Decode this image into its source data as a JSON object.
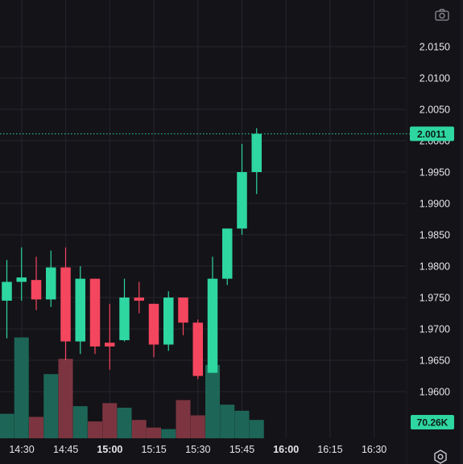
{
  "chart_data": {
    "type": "candlestick",
    "x_ticks": [
      {
        "t": "14:30",
        "bold": false
      },
      {
        "t": "14:45",
        "bold": false
      },
      {
        "t": "15:00",
        "bold": true
      },
      {
        "t": "15:15",
        "bold": false
      },
      {
        "t": "15:30",
        "bold": false
      },
      {
        "t": "15:45",
        "bold": false
      },
      {
        "t": "16:00",
        "bold": true
      },
      {
        "t": "16:15",
        "bold": false
      },
      {
        "t": "16:30",
        "bold": false
      }
    ],
    "y_ticks": [
      "2.0150",
      "2.0100",
      "2.0050",
      "2.0000",
      "1.9950",
      "1.9900",
      "1.9850",
      "1.9800",
      "1.9750",
      "1.9700",
      "1.9650",
      "1.9600"
    ],
    "y_range": [
      1.9565,
      2.0195
    ],
    "last_price_label": "2.0011",
    "last_price": 2.0011,
    "volume_label": "70.26K",
    "colors": {
      "up": "#2ed6a0",
      "down": "#f4465e",
      "up_volume": "#1d6657",
      "down_volume": "#7c3540",
      "grid": "#26252c",
      "background": "#141318"
    },
    "candles": [
      {
        "time": "14:24",
        "open": 1.9745,
        "high": 1.981,
        "low": 1.9685,
        "close": 1.9775,
        "volume": 0.16
      },
      {
        "time": "14:27",
        "open": 1.9775,
        "high": 1.983,
        "low": 1.9745,
        "close": 1.9782,
        "volume": 0.66
      },
      {
        "time": "14:30",
        "open": 1.9778,
        "high": 1.9815,
        "low": 1.973,
        "close": 1.9747,
        "volume": 0.14
      },
      {
        "time": "14:33",
        "open": 1.9747,
        "high": 1.9825,
        "low": 1.9735,
        "close": 1.9798,
        "volume": 0.42
      },
      {
        "time": "14:36",
        "open": 1.9798,
        "high": 1.983,
        "low": 1.965,
        "close": 1.968,
        "volume": 0.52
      },
      {
        "time": "14:39",
        "open": 1.968,
        "high": 1.98,
        "low": 1.966,
        "close": 1.978,
        "volume": 0.21
      },
      {
        "time": "14:42",
        "open": 1.978,
        "high": 1.978,
        "low": 1.966,
        "close": 1.9672,
        "volume": 0.11
      },
      {
        "time": "14:45",
        "open": 1.9678,
        "high": 1.974,
        "low": 1.9635,
        "close": 1.9672,
        "volume": 0.23
      },
      {
        "time": "14:48",
        "open": 1.9682,
        "high": 1.978,
        "low": 1.968,
        "close": 1.975,
        "volume": 0.2
      },
      {
        "time": "14:51",
        "open": 1.975,
        "high": 1.9775,
        "low": 1.9725,
        "close": 1.9745,
        "volume": 0.12
      },
      {
        "time": "14:54",
        "open": 1.974,
        "high": 1.974,
        "low": 1.9655,
        "close": 1.9675,
        "volume": 0.07
      },
      {
        "time": "14:57",
        "open": 1.9675,
        "high": 1.976,
        "low": 1.9665,
        "close": 1.975,
        "volume": 0.06
      },
      {
        "time": "15:00",
        "open": 1.975,
        "high": 1.975,
        "low": 1.969,
        "close": 1.971,
        "volume": 0.25
      },
      {
        "time": "15:03",
        "open": 1.971,
        "high": 1.9715,
        "low": 1.962,
        "close": 1.9625,
        "volume": 0.15
      },
      {
        "time": "15:06",
        "open": 1.963,
        "high": 1.9815,
        "low": 1.963,
        "close": 1.978,
        "volume": 0.48
      },
      {
        "time": "15:09",
        "open": 1.978,
        "high": 1.986,
        "low": 1.977,
        "close": 1.986,
        "volume": 0.22
      },
      {
        "time": "15:12",
        "open": 1.986,
        "high": 1.9995,
        "low": 1.985,
        "close": 1.995,
        "volume": 0.18
      },
      {
        "time": "15:15",
        "open": 1.995,
        "high": 2.002,
        "low": 1.9915,
        "close": 2.0011,
        "volume": 0.12
      }
    ]
  },
  "toolbar": {
    "camera_icon": "camera-icon",
    "settings_icon": "settings-icon"
  }
}
